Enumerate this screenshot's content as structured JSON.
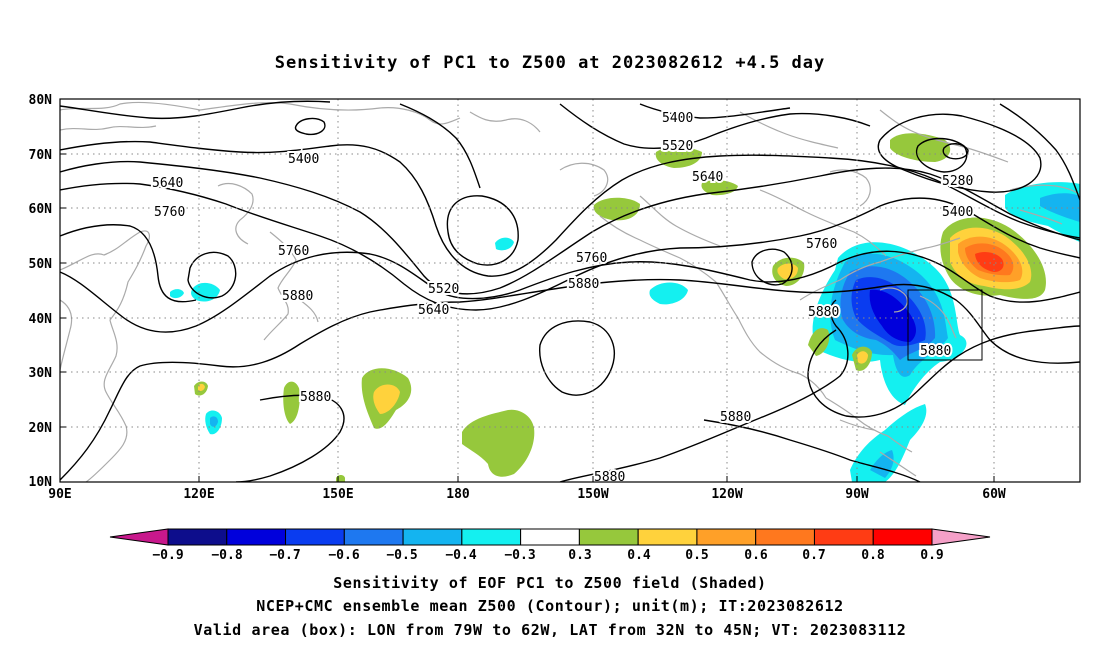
{
  "title": "Sensitivity of PC1 to Z500 at 2023082612 +4.5 day",
  "map": {
    "lon_labels": [
      "90E",
      "120E",
      "150E",
      "180",
      "150W",
      "120W",
      "90W",
      "60W"
    ],
    "lat_labels": [
      "80N",
      "70N",
      "60N",
      "50N",
      "40N",
      "30N",
      "20N",
      "10N"
    ],
    "lon_range": [
      "90E",
      "48W"
    ],
    "lat_range": [
      "10N",
      "80N"
    ],
    "gridlines": "dotted",
    "coastline_color": "#aaaaaa",
    "contour_color": "#000000",
    "valid_box": {
      "lon": [
        "79W",
        "62W"
      ],
      "lat": [
        "32N",
        "45N"
      ]
    },
    "contour_labels": [
      {
        "id": "c-5400-a",
        "text": "5400"
      },
      {
        "id": "c-5400-b",
        "text": "5400"
      },
      {
        "id": "c-5400-c",
        "text": "5400"
      },
      {
        "id": "c-5280",
        "text": "5280"
      },
      {
        "id": "c-5520-a",
        "text": "5520"
      },
      {
        "id": "c-5520-b",
        "text": "5520"
      },
      {
        "id": "c-5640-a",
        "text": "5640"
      },
      {
        "id": "c-5640-b",
        "text": "5640"
      },
      {
        "id": "c-5640-c",
        "text": "5640"
      },
      {
        "id": "c-5760-a",
        "text": "5760"
      },
      {
        "id": "c-5760-b",
        "text": "5760"
      },
      {
        "id": "c-5760-c",
        "text": "5760"
      },
      {
        "id": "c-5760-d",
        "text": "5760"
      },
      {
        "id": "c-5880-a",
        "text": "5880"
      },
      {
        "id": "c-5880-b",
        "text": "5880"
      },
      {
        "id": "c-5880-c",
        "text": "5880"
      },
      {
        "id": "c-5880-d",
        "text": "5880"
      },
      {
        "id": "c-5880-e",
        "text": "5880"
      },
      {
        "id": "c-5880-f",
        "text": "5880"
      },
      {
        "id": "c-5880-g",
        "text": "5880"
      }
    ]
  },
  "colorbar": {
    "labels": [
      "−0.9",
      "−0.8",
      "−0.7",
      "−0.6",
      "−0.5",
      "−0.4",
      "−0.3",
      "0.3",
      "0.4",
      "0.5",
      "0.6",
      "0.7",
      "0.8",
      "0.9"
    ],
    "low_extend_color": "#c8188c",
    "high_extend_color": "#f5a0c8",
    "colors": [
      "#0d0d8c",
      "#0000dc",
      "#0a3cf0",
      "#1e78f0",
      "#14b4f0",
      "#14f0f0",
      "#ffffff",
      "#96c83c",
      "#ffd23c",
      "#ffa028",
      "#ff781e",
      "#ff3c14",
      "#ff0000"
    ]
  },
  "captions": [
    "Sensitivity of EOF PC1 to Z500 field (Shaded)",
    "NCEP+CMC ensemble mean Z500 (Contour); unit(m); IT:2023082612",
    "Valid area (box): LON from 79W to 62W, LAT from 32N to 45N; VT: 2023083112"
  ]
}
